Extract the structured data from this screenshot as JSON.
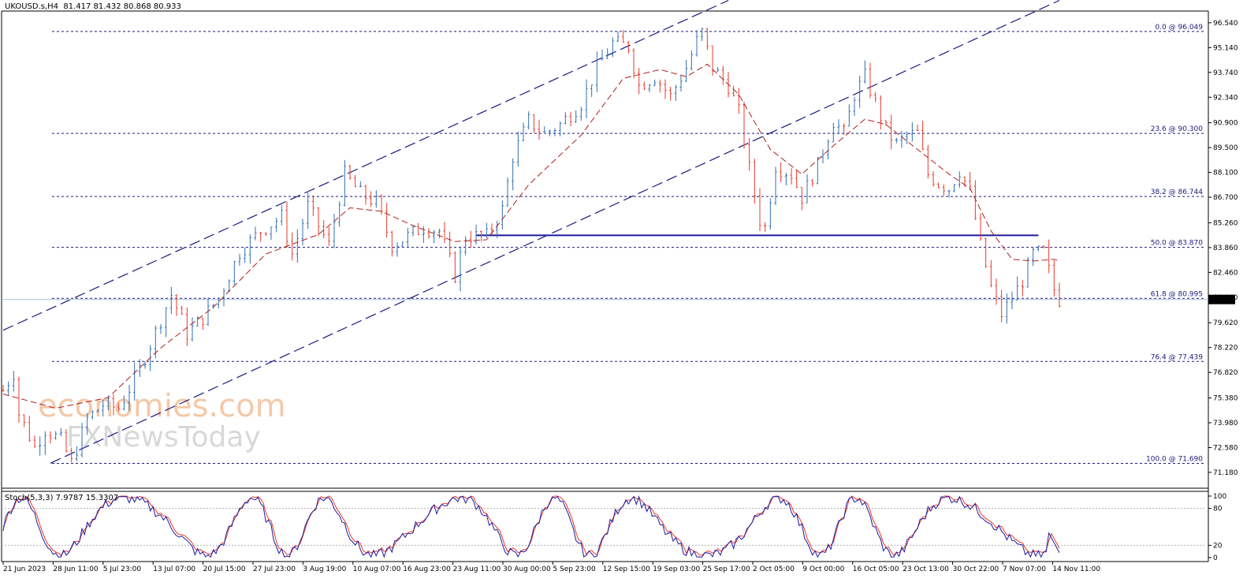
{
  "header": {
    "symbol": "UKOUSD.s,H4",
    "ohlc": "81.417 81.432 80.868 80.933"
  },
  "stoch_header": "Stoch(5,3,3) 7.9787 15.3307",
  "watermark": {
    "line1": "economies.com",
    "line2": "FXNewsToday"
  },
  "colors": {
    "bull": "#2f6fb0",
    "bear": "#e8392b",
    "ma": "#b02020",
    "channel": "#1a1a80",
    "support": "#1a1aa0",
    "fib": "#1a1a80",
    "stoch_main": "#1a1aa0",
    "stoch_signal": "#e8392b"
  },
  "chart_data": {
    "type": "candlestick",
    "symbol": "UKOUSD.s",
    "timeframe": "H4",
    "current_price": "80.933",
    "price_ticks": [
      "96.540",
      "95.140",
      "93.740",
      "92.340",
      "90.900",
      "89.500",
      "88.100",
      "86.700",
      "85.260",
      "83.860",
      "82.460",
      "81.060",
      "79.620",
      "78.220",
      "76.820",
      "75.380",
      "73.980",
      "72.580",
      "71.180"
    ],
    "price_range": [
      70.6,
      97.2
    ],
    "time_labels": [
      "21 Jun 2023",
      "28 Jun 11:00",
      "5 Jul 23:00",
      "13 Jul 07:00",
      "20 Jul 15:00",
      "27 Jul 23:00",
      "3 Aug 19:00",
      "10 Aug 07:00",
      "16 Aug 23:00",
      "23 Aug 11:00",
      "30 Aug 00:00",
      "5 Sep 23:00",
      "12 Sep 15:00",
      "19 Sep 03:00",
      "25 Sep 17:00",
      "2 Oct 05:00",
      "9 Oct 00:00",
      "16 Oct 05:00",
      "23 Oct 13:00",
      "30 Oct 22:00",
      "7 Nov 07:00",
      "14 Nov 11:00"
    ],
    "fibonacci": [
      {
        "label": "0.0 @ 96.049",
        "price": 96.049
      },
      {
        "label": "23.6 @ 90.300",
        "price": 90.3
      },
      {
        "label": "38.2 @ 86.744",
        "price": 86.744
      },
      {
        "label": "50.0 @ 83.870",
        "price": 83.87
      },
      {
        "label": "61.8 @ 80.995",
        "price": 80.995
      },
      {
        "label": "76.4 @ 77.439",
        "price": 77.439
      },
      {
        "label": "100.0 @ 71.690",
        "price": 71.69
      }
    ],
    "support_level": 84.55,
    "path_points": [
      [
        0,
        75.8
      ],
      [
        2,
        76.8
      ],
      [
        3,
        74.5
      ],
      [
        6,
        72.6
      ],
      [
        8,
        73.6
      ],
      [
        11,
        73.0
      ],
      [
        13,
        71.7
      ],
      [
        16,
        74.2
      ],
      [
        19,
        75.0
      ],
      [
        22,
        74.8
      ],
      [
        26,
        77.0
      ],
      [
        30,
        79.8
      ],
      [
        32,
        81.2
      ],
      [
        35,
        79.0
      ],
      [
        38,
        79.9
      ],
      [
        41,
        81.0
      ],
      [
        45,
        83.6
      ],
      [
        49,
        84.8
      ],
      [
        53,
        85.6
      ],
      [
        55,
        83.5
      ],
      [
        58,
        86.2
      ],
      [
        62,
        84.0
      ],
      [
        65,
        88.0
      ],
      [
        68,
        86.9
      ],
      [
        71,
        86.4
      ],
      [
        74,
        84.0
      ],
      [
        77,
        84.5
      ],
      [
        80,
        85.0
      ],
      [
        83,
        84.8
      ],
      [
        86,
        82.3
      ],
      [
        88,
        84.5
      ],
      [
        92,
        84.5
      ],
      [
        95,
        86.0
      ],
      [
        97,
        89.0
      ],
      [
        100,
        91.0
      ],
      [
        103,
        90.3
      ],
      [
        106,
        90.8
      ],
      [
        110,
        92.0
      ],
      [
        113,
        94.0
      ],
      [
        116,
        95.4
      ],
      [
        119,
        95.2
      ],
      [
        121,
        93.0
      ],
      [
        124,
        93.5
      ],
      [
        127,
        92.4
      ],
      [
        130,
        94.0
      ],
      [
        132,
        95.5
      ],
      [
        133,
        96.0
      ],
      [
        135,
        94.0
      ],
      [
        138,
        93.0
      ],
      [
        140,
        91.5
      ],
      [
        142,
        88.3
      ],
      [
        144,
        85.4
      ],
      [
        145,
        85.0
      ],
      [
        147,
        88.5
      ],
      [
        150,
        88.0
      ],
      [
        152,
        86.7
      ],
      [
        155,
        88.5
      ],
      [
        158,
        91.0
      ],
      [
        160,
        90.3
      ],
      [
        162,
        92.5
      ],
      [
        164,
        93.5
      ],
      [
        166,
        92.0
      ],
      [
        168,
        90.5
      ],
      [
        170,
        89.7
      ],
      [
        172,
        90.2
      ],
      [
        174,
        90.3
      ],
      [
        176,
        88.0
      ],
      [
        178,
        87.5
      ],
      [
        180,
        87.2
      ],
      [
        182,
        88.2
      ],
      [
        184,
        87.0
      ],
      [
        186,
        84.0
      ],
      [
        188,
        81.6
      ],
      [
        190,
        80.1
      ],
      [
        192,
        81.0
      ],
      [
        194,
        82.0
      ],
      [
        196,
        83.5
      ],
      [
        198,
        83.6
      ],
      [
        200,
        81.5
      ],
      [
        201,
        80.93
      ]
    ],
    "ma_points": [
      [
        0,
        75.6
      ],
      [
        10,
        74.8
      ],
      [
        20,
        75.4
      ],
      [
        30,
        78.2
      ],
      [
        40,
        80.5
      ],
      [
        50,
        83.5
      ],
      [
        60,
        84.6
      ],
      [
        66,
        86.1
      ],
      [
        72,
        85.9
      ],
      [
        78,
        85.1
      ],
      [
        86,
        84.2
      ],
      [
        92,
        84.3
      ],
      [
        100,
        87.4
      ],
      [
        110,
        90.2
      ],
      [
        118,
        93.4
      ],
      [
        125,
        93.9
      ],
      [
        130,
        93.5
      ],
      [
        134,
        94.2
      ],
      [
        140,
        92.5
      ],
      [
        146,
        89.4
      ],
      [
        152,
        88.0
      ],
      [
        158,
        89.6
      ],
      [
        164,
        91.1
      ],
      [
        168,
        90.8
      ],
      [
        174,
        89.4
      ],
      [
        180,
        88.0
      ],
      [
        184,
        87.2
      ],
      [
        188,
        84.8
      ],
      [
        192,
        83.2
      ],
      [
        196,
        83.1
      ],
      [
        200,
        83.2
      ],
      [
        201,
        83.1
      ]
    ],
    "channel_lines": [
      {
        "x1": 0,
        "y1": 79.2,
        "x2": 138,
        "y2": 97.8
      },
      {
        "x1": 9,
        "y1": 71.7,
        "x2": 201,
        "y2": 97.8
      }
    ],
    "stochastic": {
      "name": "Stoch(5,3,3)",
      "k": 7.9787,
      "d": 15.3307,
      "levels": [
        80,
        20
      ],
      "ticks": [
        "100",
        "80",
        "20",
        "0"
      ]
    }
  }
}
